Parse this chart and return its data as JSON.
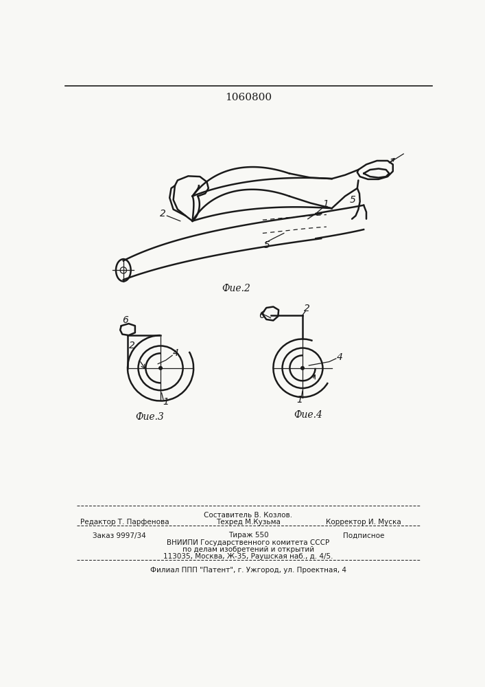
{
  "title": "1060800",
  "fig_label2": "Фие.2",
  "fig_label3": "Фие.3",
  "fig_label4": "Фие.4",
  "footer_line1": "Составитель В. Козлов.",
  "footer_line2a": "Редактор Т. Парфенова",
  "footer_line2b": "Техред М.Кузьма",
  "footer_line2c": "Корректор И. Муска",
  "footer_line3a": "Заказ 9997/34",
  "footer_line3b": "Тираж 550",
  "footer_line3c": "Подписное",
  "footer_line4": "ВНИИПИ Государственного комитета СССР",
  "footer_line5": "по делам изобретений и открытий",
  "footer_line6": "113035, Москва, Ж-35, Раушская наб., д. 4/5.",
  "footer_line7": "Филиал ППП \"Патент\", г. Ужгород, ул. Проектная, 4",
  "bg_color": "#f8f8f5",
  "line_color": "#1a1a1a"
}
